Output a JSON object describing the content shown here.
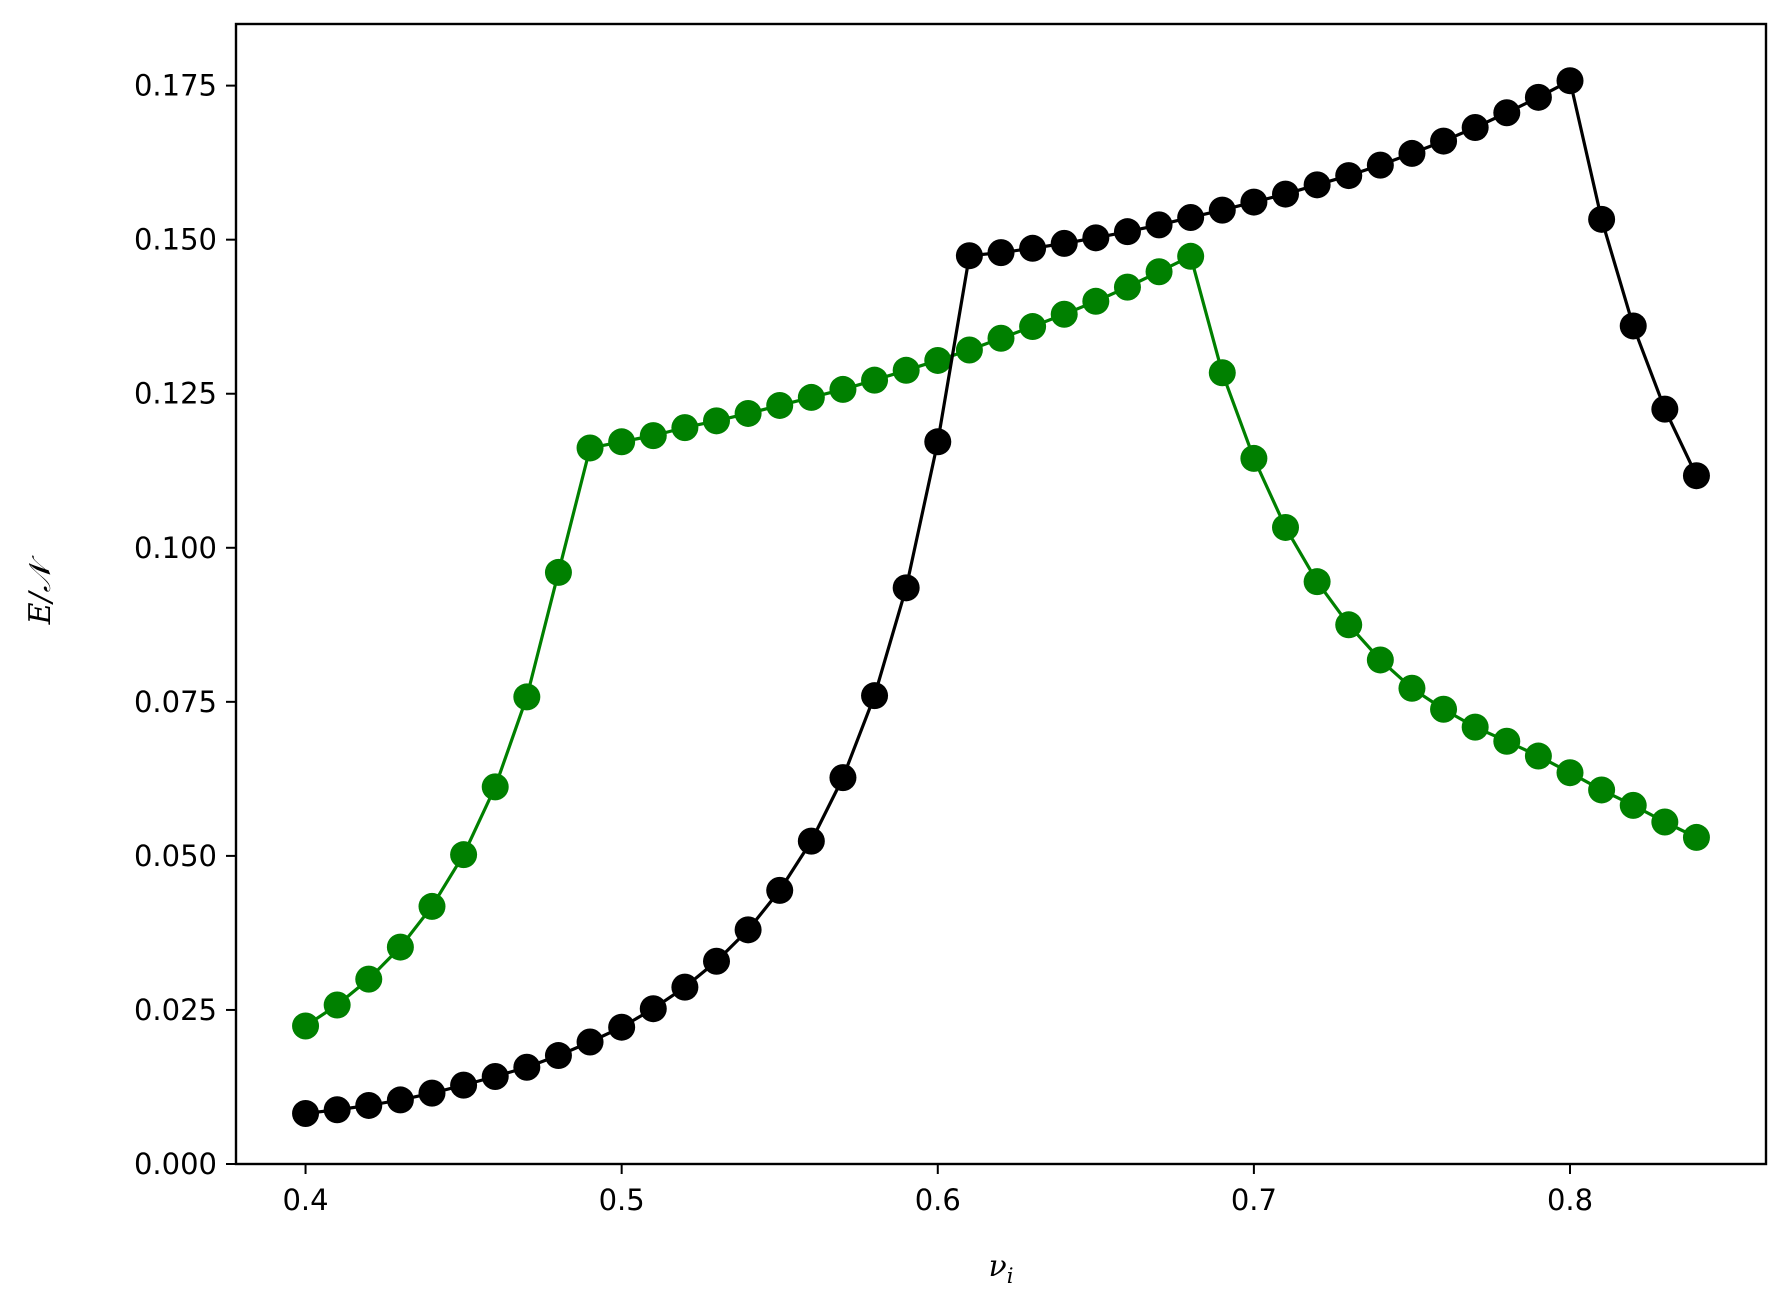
{
  "chart_data": {
    "type": "line",
    "title": "",
    "xlabel": "ν_i",
    "ylabel": "E/𝒩",
    "xlim": [
      0.378,
      0.862
    ],
    "ylim": [
      0.0,
      0.185
    ],
    "grid": false,
    "legend": "none",
    "x_ticks": [
      0.4,
      0.5,
      0.6,
      0.7,
      0.8
    ],
    "x_tick_labels": [
      "0.4",
      "0.5",
      "0.6",
      "0.7",
      "0.8"
    ],
    "y_ticks": [
      0.0,
      0.025,
      0.05,
      0.075,
      0.1,
      0.125,
      0.15,
      0.175
    ],
    "y_tick_labels": [
      "0.000",
      "0.025",
      "0.050",
      "0.075",
      "0.100",
      "0.125",
      "0.150",
      "0.175"
    ],
    "series": [
      {
        "color": "#008000",
        "marker": "circle",
        "x": [
          0.4,
          0.41,
          0.42,
          0.43,
          0.44,
          0.45,
          0.46,
          0.47,
          0.48,
          0.49,
          0.5,
          0.51,
          0.52,
          0.53,
          0.54,
          0.55,
          0.56,
          0.57,
          0.58,
          0.59,
          0.6,
          0.61,
          0.62,
          0.63,
          0.64,
          0.65,
          0.66,
          0.67,
          0.68,
          0.69,
          0.7,
          0.71,
          0.72,
          0.73,
          0.74,
          0.75,
          0.76,
          0.77,
          0.78,
          0.79,
          0.8,
          0.81,
          0.82,
          0.83,
          0.84
        ],
        "y": [
          0.0224,
          0.0258,
          0.03,
          0.0352,
          0.0418,
          0.0502,
          0.0612,
          0.0758,
          0.096,
          0.1162,
          0.1172,
          0.1182,
          0.1195,
          0.1206,
          0.1218,
          0.1231,
          0.1244,
          0.1257,
          0.1272,
          0.1288,
          0.1304,
          0.1321,
          0.134,
          0.1359,
          0.1379,
          0.14,
          0.1423,
          0.1448,
          0.1473,
          0.1284,
          0.1145,
          0.1033,
          0.0945,
          0.0875,
          0.0818,
          0.0772,
          0.0738,
          0.0709,
          0.0686,
          0.0662,
          0.0635,
          0.0607,
          0.0582,
          0.0555,
          0.053
        ]
      },
      {
        "color": "#000000",
        "marker": "circle",
        "x": [
          0.4,
          0.41,
          0.42,
          0.43,
          0.44,
          0.45,
          0.46,
          0.47,
          0.48,
          0.49,
          0.5,
          0.51,
          0.52,
          0.53,
          0.54,
          0.55,
          0.56,
          0.57,
          0.58,
          0.59,
          0.6,
          0.61,
          0.62,
          0.63,
          0.64,
          0.65,
          0.66,
          0.67,
          0.68,
          0.69,
          0.7,
          0.71,
          0.72,
          0.73,
          0.74,
          0.75,
          0.76,
          0.77,
          0.78,
          0.79,
          0.8,
          0.81,
          0.82,
          0.83,
          0.84
        ],
        "y": [
          0.0082,
          0.0088,
          0.0095,
          0.0104,
          0.0115,
          0.0128,
          0.0142,
          0.0157,
          0.0176,
          0.0198,
          0.0222,
          0.0252,
          0.0287,
          0.0329,
          0.038,
          0.0444,
          0.0524,
          0.0627,
          0.076,
          0.0935,
          0.1172,
          0.1474,
          0.1479,
          0.1486,
          0.1494,
          0.1503,
          0.1513,
          0.1524,
          0.1536,
          0.1548,
          0.1561,
          0.1574,
          0.1589,
          0.1604,
          0.1621,
          0.164,
          0.166,
          0.1682,
          0.1706,
          0.1731,
          0.1758,
          0.1533,
          0.136,
          0.1225,
          0.1117
        ]
      }
    ]
  }
}
